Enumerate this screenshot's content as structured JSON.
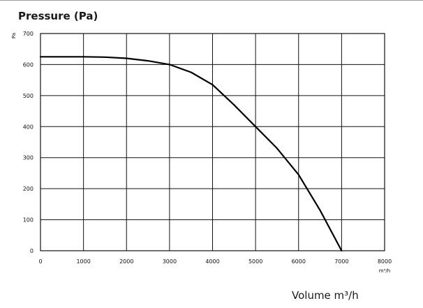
{
  "title": "Pressure (Pa)",
  "footer_label": "Volume m³/h",
  "chart_data": {
    "type": "line",
    "title": "Pressure (Pa)",
    "ylabel": "Pa",
    "xlabel": "m³/h",
    "xlim": [
      0,
      8000
    ],
    "ylim": [
      0,
      700
    ],
    "xticks": [
      0,
      1000,
      2000,
      3000,
      4000,
      5000,
      6000,
      7000,
      8000
    ],
    "yticks": [
      0,
      100,
      200,
      300,
      400,
      500,
      600,
      700
    ],
    "grid": true,
    "series": [
      {
        "x": [
          0,
          500,
          1000,
          1500,
          2000,
          2500,
          3000,
          3500,
          4000,
          4500,
          5000,
          5500,
          6000,
          6500,
          7000
        ],
        "y": [
          625,
          625,
          625,
          624,
          620,
          612,
          600,
          575,
          535,
          470,
          400,
          330,
          245,
          130,
          0
        ]
      }
    ]
  }
}
